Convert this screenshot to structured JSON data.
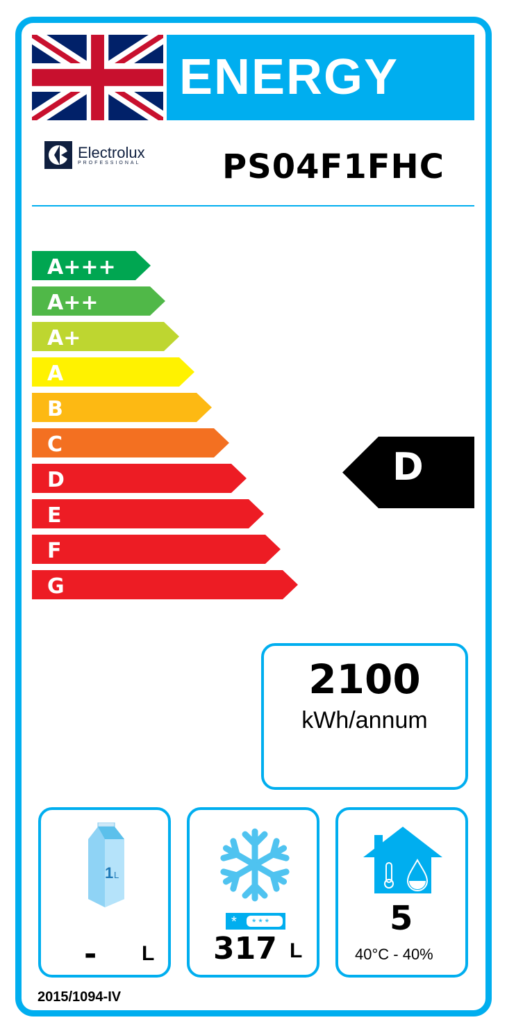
{
  "header": {
    "title": "ENERGY",
    "flag_icon": "union-jack-flag-icon"
  },
  "brand": {
    "name": "Electrolux",
    "sub": "PROFESSIONAL"
  },
  "model": "PS04F1FHC",
  "scale": {
    "classes": [
      {
        "label": "A+++",
        "color": "#00a651"
      },
      {
        "label": "A++",
        "color": "#50b848"
      },
      {
        "label": "A+",
        "color": "#bed630"
      },
      {
        "label": "A",
        "color": "#fff200"
      },
      {
        "label": "B",
        "color": "#fdb913"
      },
      {
        "label": "C",
        "color": "#f37021"
      },
      {
        "label": "D",
        "color": "#ed1c24"
      },
      {
        "label": "E",
        "color": "#ed1c24"
      },
      {
        "label": "F",
        "color": "#ed1c24"
      },
      {
        "label": "G",
        "color": "#ed1c24"
      }
    ]
  },
  "rating": "D",
  "consumption": {
    "value": "2100",
    "unit": "kWh/annum"
  },
  "chilled": {
    "value": "-",
    "unit": "L",
    "icon": "milk-carton-icon",
    "icon_text": "1L"
  },
  "frozen": {
    "value": "317",
    "unit": "L",
    "icon": "snowflake-icon"
  },
  "climate": {
    "class": "5",
    "conditions": "40°C - 40%",
    "icon": "house-climate-icon"
  },
  "regulation": "2015/1094-IV",
  "colors": {
    "accent": "#00aeef"
  }
}
